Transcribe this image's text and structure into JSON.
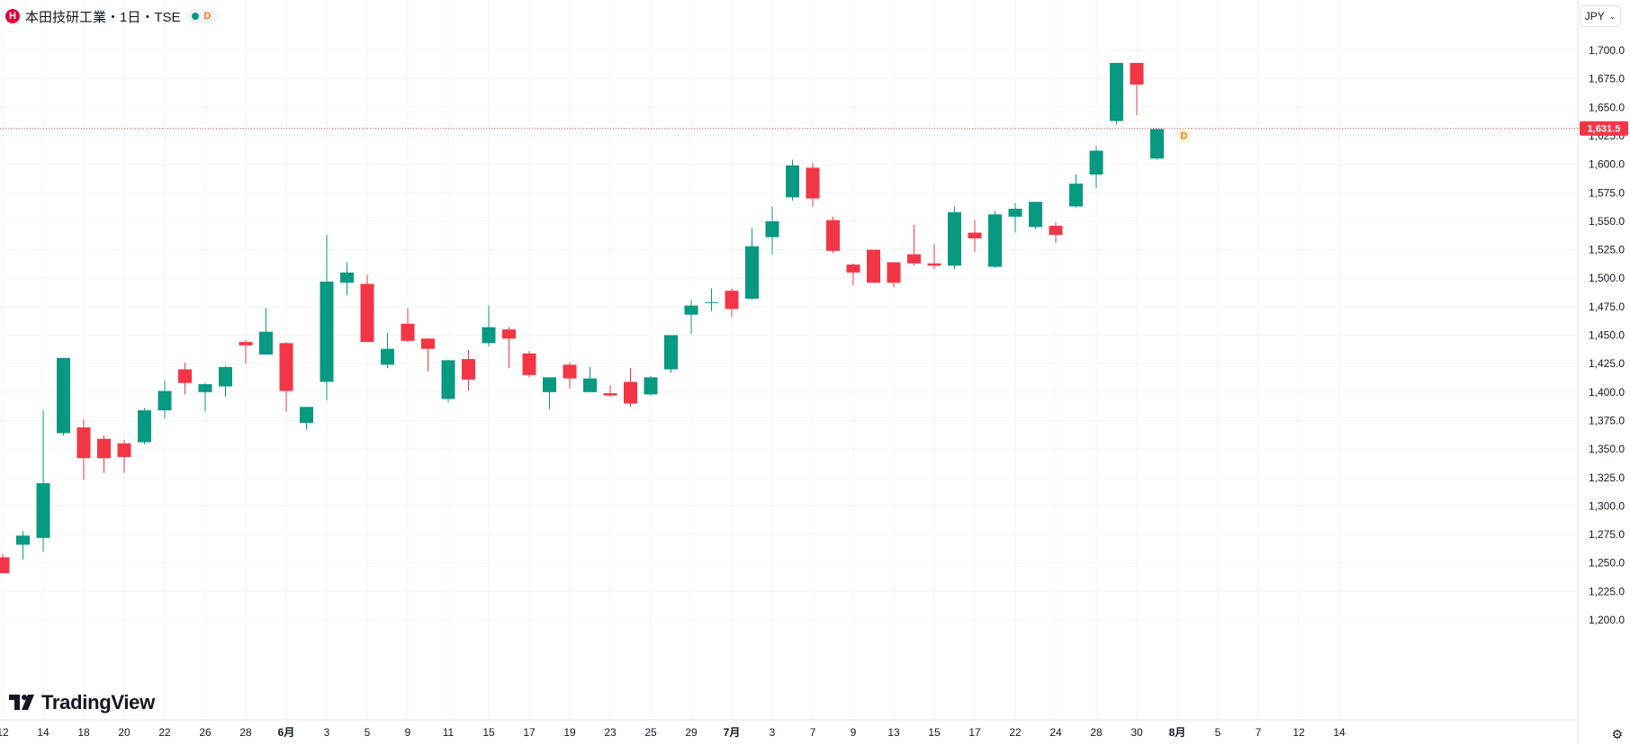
{
  "header": {
    "symbol": "本田技研工業・1日・TSE",
    "logo_letter": "H",
    "flag": "D",
    "status_color": "#089981"
  },
  "currency": {
    "label": "JPY"
  },
  "brand": {
    "name": "TradingView"
  },
  "colors": {
    "up": "#089981",
    "down": "#f23645",
    "grid": "#f0f3fa"
  },
  "chart_data": {
    "type": "candlestick",
    "y_axis": {
      "min": 1200,
      "max": 1700,
      "step": 25,
      "side": "right",
      "labels": [
        "1,200.0",
        "1,225.0",
        "1,250.0",
        "1,275.0",
        "1,300.0",
        "1,325.0",
        "1,350.0",
        "1,375.0",
        "1,400.0",
        "1,425.0",
        "1,450.0",
        "1,475.0",
        "1,500.0",
        "1,525.0",
        "1,550.0",
        "1,575.0",
        "1,600.0",
        "1,625.0",
        "1,650.0",
        "1,675.0",
        "1,700.0"
      ]
    },
    "x_labels": [
      {
        "i": 0,
        "t": "12"
      },
      {
        "i": 2,
        "t": "14"
      },
      {
        "i": 4,
        "t": "18"
      },
      {
        "i": 6,
        "t": "20"
      },
      {
        "i": 8,
        "t": "22"
      },
      {
        "i": 10,
        "t": "26"
      },
      {
        "i": 12,
        "t": "28"
      },
      {
        "i": 14,
        "t": "6月"
      },
      {
        "i": 16,
        "t": "3"
      },
      {
        "i": 18,
        "t": "5"
      },
      {
        "i": 20,
        "t": "9"
      },
      {
        "i": 22,
        "t": "11"
      },
      {
        "i": 24,
        "t": "15"
      },
      {
        "i": 26,
        "t": "17"
      },
      {
        "i": 28,
        "t": "19"
      },
      {
        "i": 30,
        "t": "23"
      },
      {
        "i": 32,
        "t": "25"
      },
      {
        "i": 34,
        "t": "29"
      },
      {
        "i": 36,
        "t": "7月"
      },
      {
        "i": 38,
        "t": "3"
      },
      {
        "i": 40,
        "t": "7"
      },
      {
        "i": 42,
        "t": "9"
      },
      {
        "i": 44,
        "t": "13"
      },
      {
        "i": 46,
        "t": "15"
      },
      {
        "i": 48,
        "t": "17"
      },
      {
        "i": 50,
        "t": "22"
      },
      {
        "i": 52,
        "t": "24"
      },
      {
        "i": 54,
        "t": "28"
      },
      {
        "i": 56,
        "t": "30"
      },
      {
        "i": 58,
        "t": "8月"
      },
      {
        "i": 60,
        "t": "5"
      },
      {
        "i": 62,
        "t": "7"
      },
      {
        "i": 64,
        "t": "12"
      },
      {
        "i": 66,
        "t": "14"
      }
    ],
    "last_price": {
      "value": 1631.5,
      "label": "1,631.5",
      "flag": "D"
    },
    "grid": true,
    "candles": [
      {
        "o": 1255,
        "h": 1258,
        "l": 1241,
        "c": 1241
      },
      {
        "o": 1266,
        "h": 1278,
        "l": 1253,
        "c": 1274
      },
      {
        "o": 1272,
        "h": 1384,
        "l": 1260,
        "c": 1320
      },
      {
        "o": 1364,
        "h": 1430,
        "l": 1362,
        "c": 1430
      },
      {
        "o": 1369,
        "h": 1376,
        "l": 1323,
        "c": 1342
      },
      {
        "o": 1359,
        "h": 1362,
        "l": 1329,
        "c": 1342
      },
      {
        "o": 1355,
        "h": 1358,
        "l": 1329,
        "c": 1343
      },
      {
        "o": 1356,
        "h": 1386,
        "l": 1354,
        "c": 1384
      },
      {
        "o": 1384,
        "h": 1410,
        "l": 1377,
        "c": 1401
      },
      {
        "o": 1420,
        "h": 1426,
        "l": 1398,
        "c": 1408
      },
      {
        "o": 1400,
        "h": 1408,
        "l": 1383,
        "c": 1407
      },
      {
        "o": 1405,
        "h": 1423,
        "l": 1396,
        "c": 1422
      },
      {
        "o": 1444,
        "h": 1446,
        "l": 1425,
        "c": 1441
      },
      {
        "o": 1433,
        "h": 1474,
        "l": 1433,
        "c": 1453
      },
      {
        "o": 1443,
        "h": 1444,
        "l": 1383,
        "c": 1401
      },
      {
        "o": 1373,
        "h": 1387,
        "l": 1367,
        "c": 1387
      },
      {
        "o": 1409,
        "h": 1538,
        "l": 1393,
        "c": 1497
      },
      {
        "o": 1496,
        "h": 1514,
        "l": 1485,
        "c": 1505
      },
      {
        "o": 1495,
        "h": 1503,
        "l": 1444,
        "c": 1444
      },
      {
        "o": 1424,
        "h": 1452,
        "l": 1421,
        "c": 1438
      },
      {
        "o": 1460,
        "h": 1474,
        "l": 1444,
        "c": 1445
      },
      {
        "o": 1447,
        "h": 1447,
        "l": 1418,
        "c": 1438
      },
      {
        "o": 1394,
        "h": 1428,
        "l": 1391,
        "c": 1428
      },
      {
        "o": 1429,
        "h": 1437,
        "l": 1401,
        "c": 1411
      },
      {
        "o": 1443,
        "h": 1476,
        "l": 1440,
        "c": 1457
      },
      {
        "o": 1455,
        "h": 1457,
        "l": 1421,
        "c": 1447
      },
      {
        "o": 1434,
        "h": 1436,
        "l": 1413,
        "c": 1415
      },
      {
        "o": 1400,
        "h": 1413,
        "l": 1385,
        "c": 1413
      },
      {
        "o": 1424,
        "h": 1426,
        "l": 1403,
        "c": 1412
      },
      {
        "o": 1400,
        "h": 1422,
        "l": 1400,
        "c": 1412
      },
      {
        "o": 1399,
        "h": 1406,
        "l": 1396,
        "c": 1397
      },
      {
        "o": 1409,
        "h": 1421,
        "l": 1387,
        "c": 1390
      },
      {
        "o": 1398,
        "h": 1414,
        "l": 1397,
        "c": 1413
      },
      {
        "o": 1420,
        "h": 1450,
        "l": 1417,
        "c": 1450
      },
      {
        "o": 1468,
        "h": 1481,
        "l": 1451,
        "c": 1476
      },
      {
        "o": 1479,
        "h": 1491,
        "l": 1471,
        "c": 1479
      },
      {
        "o": 1489,
        "h": 1491,
        "l": 1466,
        "c": 1473
      },
      {
        "o": 1482,
        "h": 1544,
        "l": 1481,
        "c": 1528
      },
      {
        "o": 1536,
        "h": 1563,
        "l": 1521,
        "c": 1550
      },
      {
        "o": 1571,
        "h": 1604,
        "l": 1568,
        "c": 1599
      },
      {
        "o": 1597,
        "h": 1601,
        "l": 1563,
        "c": 1570
      },
      {
        "o": 1551,
        "h": 1554,
        "l": 1522,
        "c": 1524
      },
      {
        "o": 1512,
        "h": 1513,
        "l": 1494,
        "c": 1505
      },
      {
        "o": 1525,
        "h": 1525,
        "l": 1496,
        "c": 1496
      },
      {
        "o": 1514,
        "h": 1514,
        "l": 1492,
        "c": 1496
      },
      {
        "o": 1521,
        "h": 1547,
        "l": 1511,
        "c": 1513
      },
      {
        "o": 1513,
        "h": 1530,
        "l": 1508,
        "c": 1511
      },
      {
        "o": 1511,
        "h": 1563,
        "l": 1508,
        "c": 1558
      },
      {
        "o": 1540,
        "h": 1551,
        "l": 1523,
        "c": 1535
      },
      {
        "o": 1510,
        "h": 1559,
        "l": 1509,
        "c": 1556
      },
      {
        "o": 1554,
        "h": 1566,
        "l": 1540,
        "c": 1561
      },
      {
        "o": 1545,
        "h": 1567,
        "l": 1543,
        "c": 1567
      },
      {
        "o": 1546,
        "h": 1549,
        "l": 1531,
        "c": 1538
      },
      {
        "o": 1563,
        "h": 1591,
        "l": 1562,
        "c": 1583
      },
      {
        "o": 1591,
        "h": 1616,
        "l": 1579,
        "c": 1612
      },
      {
        "o": 1638,
        "h": 1689,
        "l": 1635,
        "c": 1689
      },
      {
        "o": 1689,
        "h": 1689,
        "l": 1643,
        "c": 1670
      },
      {
        "o": 1605,
        "h": 1631,
        "l": 1604,
        "c": 1631
      }
    ]
  }
}
